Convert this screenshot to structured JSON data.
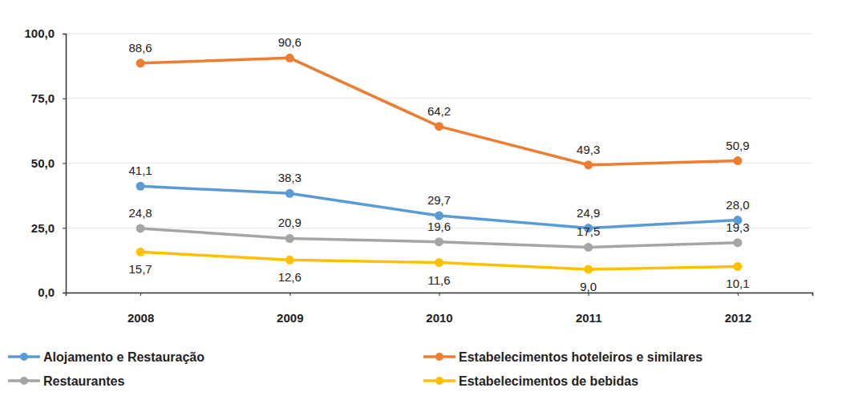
{
  "chart_data": {
    "type": "line",
    "categories": [
      "2008",
      "2009",
      "2010",
      "2011",
      "2012"
    ],
    "series": [
      {
        "name": "Alojamento e Restauração",
        "color": "#5b9bd5",
        "values": [
          41.1,
          38.3,
          29.7,
          24.9,
          28.0
        ],
        "value_labels": [
          "41,1",
          "38,3",
          "29,7",
          "24,9",
          "28,0"
        ]
      },
      {
        "name": "Estabelecimentos hoteleiros e similares",
        "color": "#ed7d31",
        "values": [
          88.6,
          90.6,
          64.2,
          49.3,
          50.9
        ],
        "value_labels": [
          "88,6",
          "90,6",
          "64,2",
          "49,3",
          "50,9"
        ]
      },
      {
        "name": "Restaurantes",
        "color": "#a5a5a5",
        "values": [
          24.8,
          20.9,
          19.6,
          17.5,
          19.3
        ],
        "value_labels": [
          "24,8",
          "20,9",
          "19,6",
          "17,5",
          "19,3"
        ]
      },
      {
        "name": "Estabelecimentos de bebidas",
        "color": "#ffc000",
        "values": [
          15.7,
          12.6,
          11.6,
          9.0,
          10.1
        ],
        "value_labels": [
          "15,7",
          "12,6",
          "11,6",
          "9,0",
          "10,1"
        ]
      }
    ],
    "ylim": [
      0,
      100
    ],
    "yticks": [
      {
        "value": 0,
        "label": "0,0"
      },
      {
        "value": 25,
        "label": "25,0"
      },
      {
        "value": 50,
        "label": "50,0"
      },
      {
        "value": 75,
        "label": "75,0"
      },
      {
        "value": 100,
        "label": "100,0"
      }
    ],
    "grid": true,
    "legend": "bottom",
    "data_labels": true,
    "marker": "circle",
    "line_style": "solid"
  }
}
